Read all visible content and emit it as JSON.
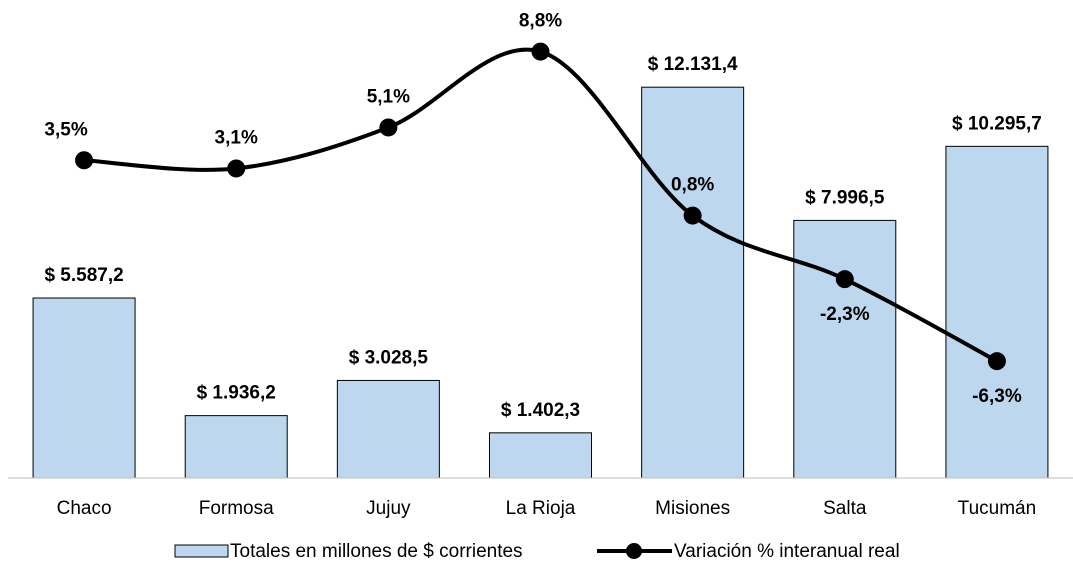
{
  "chart_data": {
    "type": "bar",
    "categories": [
      "Chaco",
      "Formosa",
      "Jujuy",
      "La Rioja",
      "Misiones",
      "Salta",
      "Tucumán"
    ],
    "series": [
      {
        "name": "Totales en millones de $ corrientes",
        "type": "bar",
        "color": "#bdd7ee",
        "values": [
          5587.2,
          1936.2,
          3028.5,
          1402.3,
          12131.4,
          7996.5,
          10295.7
        ],
        "value_labels": [
          "$ 5.587,2",
          "$ 1.936,2",
          "$ 3.028,5",
          "$ 1.402,3",
          "$ 12.131,4",
          "$ 7.996,5",
          "$ 10.295,7"
        ]
      },
      {
        "name": "Variación % interanual real",
        "type": "line",
        "axis": "y2",
        "color": "#000000",
        "values": [
          3.5,
          3.1,
          5.1,
          8.8,
          0.8,
          -2.3,
          -6.3
        ],
        "value_labels": [
          "3,5%",
          "3,1%",
          "5,1%",
          "8,8%",
          "0,8%",
          "-2,3%",
          "-6,3%"
        ]
      }
    ],
    "ylim": [
      0,
      14000
    ],
    "y2lim": [
      -12,
      10
    ],
    "legend": "bottom"
  }
}
